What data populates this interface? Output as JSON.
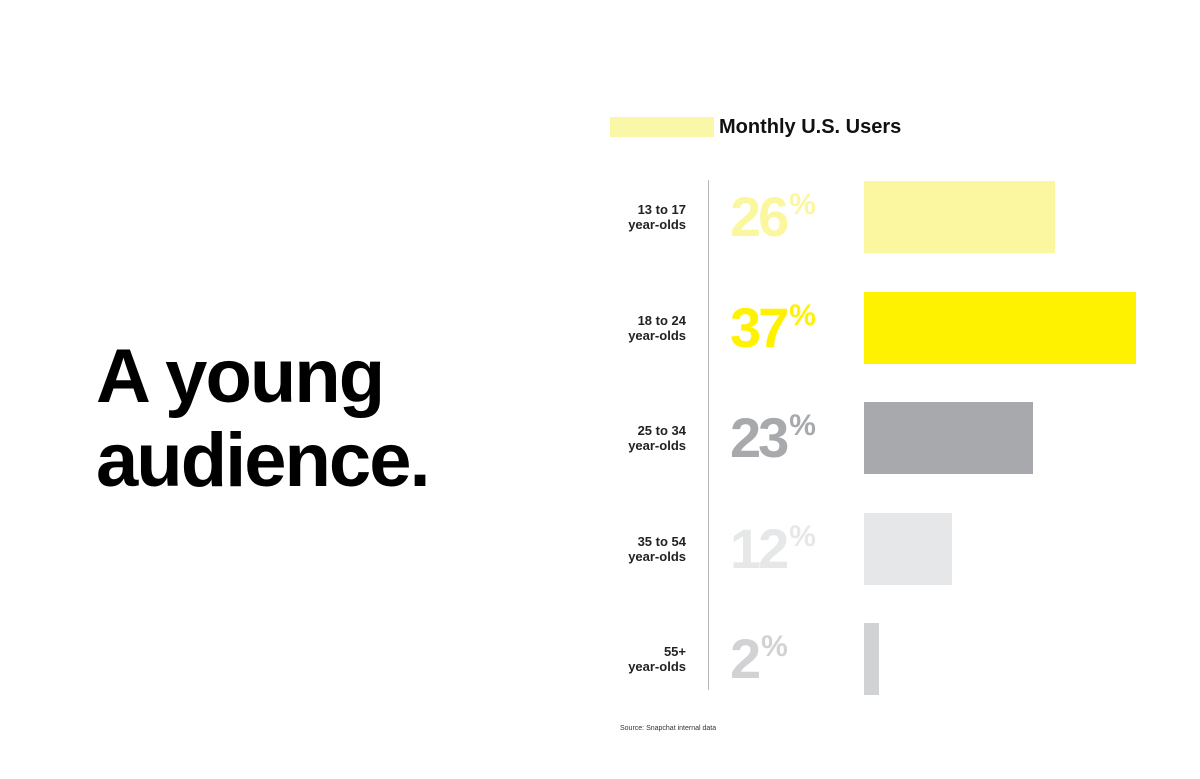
{
  "headline": {
    "line1": "A young",
    "line2": "audience."
  },
  "chart_data": {
    "type": "bar",
    "orientation": "horizontal",
    "title": "Monthly U.S. Users",
    "categories": [
      [
        "13 to 17",
        "year-olds"
      ],
      [
        "18 to 24",
        "year-olds"
      ],
      [
        "25 to 34",
        "year-olds"
      ],
      [
        "35 to 54",
        "year-olds"
      ],
      [
        "55+",
        "year-olds"
      ]
    ],
    "values": [
      26,
      37,
      23,
      12,
      2
    ],
    "value_labels": [
      "26",
      "37",
      "23",
      "12",
      "2"
    ],
    "value_suffix": "%",
    "unit": "percent",
    "xlim": [
      0,
      37
    ],
    "colors": [
      "#fbf7a0",
      "#fff200",
      "#a7a9ac",
      "#e6e7e8",
      "#d1d2d4"
    ],
    "label_colors": [
      "#fbf79f",
      "#fff200",
      "#a7a9ac",
      "#e6e7e8",
      "#d1d2d4"
    ],
    "grid": false,
    "legend": "none"
  },
  "source": "Source: Snapchat internal data"
}
